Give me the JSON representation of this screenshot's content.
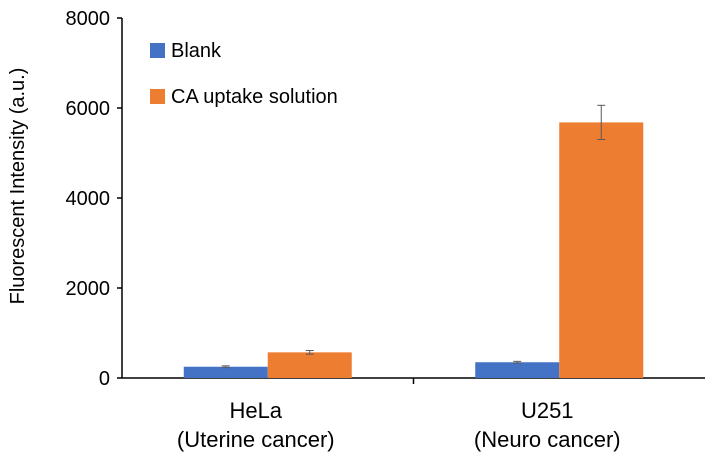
{
  "chart_data": {
    "type": "bar",
    "title": "",
    "xlabel": "",
    "ylabel": "Fluorescent Intensity (a.u.)",
    "ylim": [
      0,
      8000
    ],
    "yticks": [
      "0",
      "2000",
      "4000",
      "6000",
      "8000"
    ],
    "grid": false,
    "legend_position": "top-left",
    "categories": [
      {
        "line1": "HeLa",
        "line2": "(Uterine cancer)"
      },
      {
        "line1": "U251",
        "line2": "(Neuro cancer)"
      }
    ],
    "series": [
      {
        "name": "Blank",
        "color": "#4472C4",
        "values": [
          250,
          350
        ],
        "errors": [
          20,
          20
        ]
      },
      {
        "name": "CA uptake solution",
        "color": "#ED7D31",
        "values": [
          570,
          5680
        ],
        "errors": [
          40,
          380
        ]
      }
    ]
  }
}
